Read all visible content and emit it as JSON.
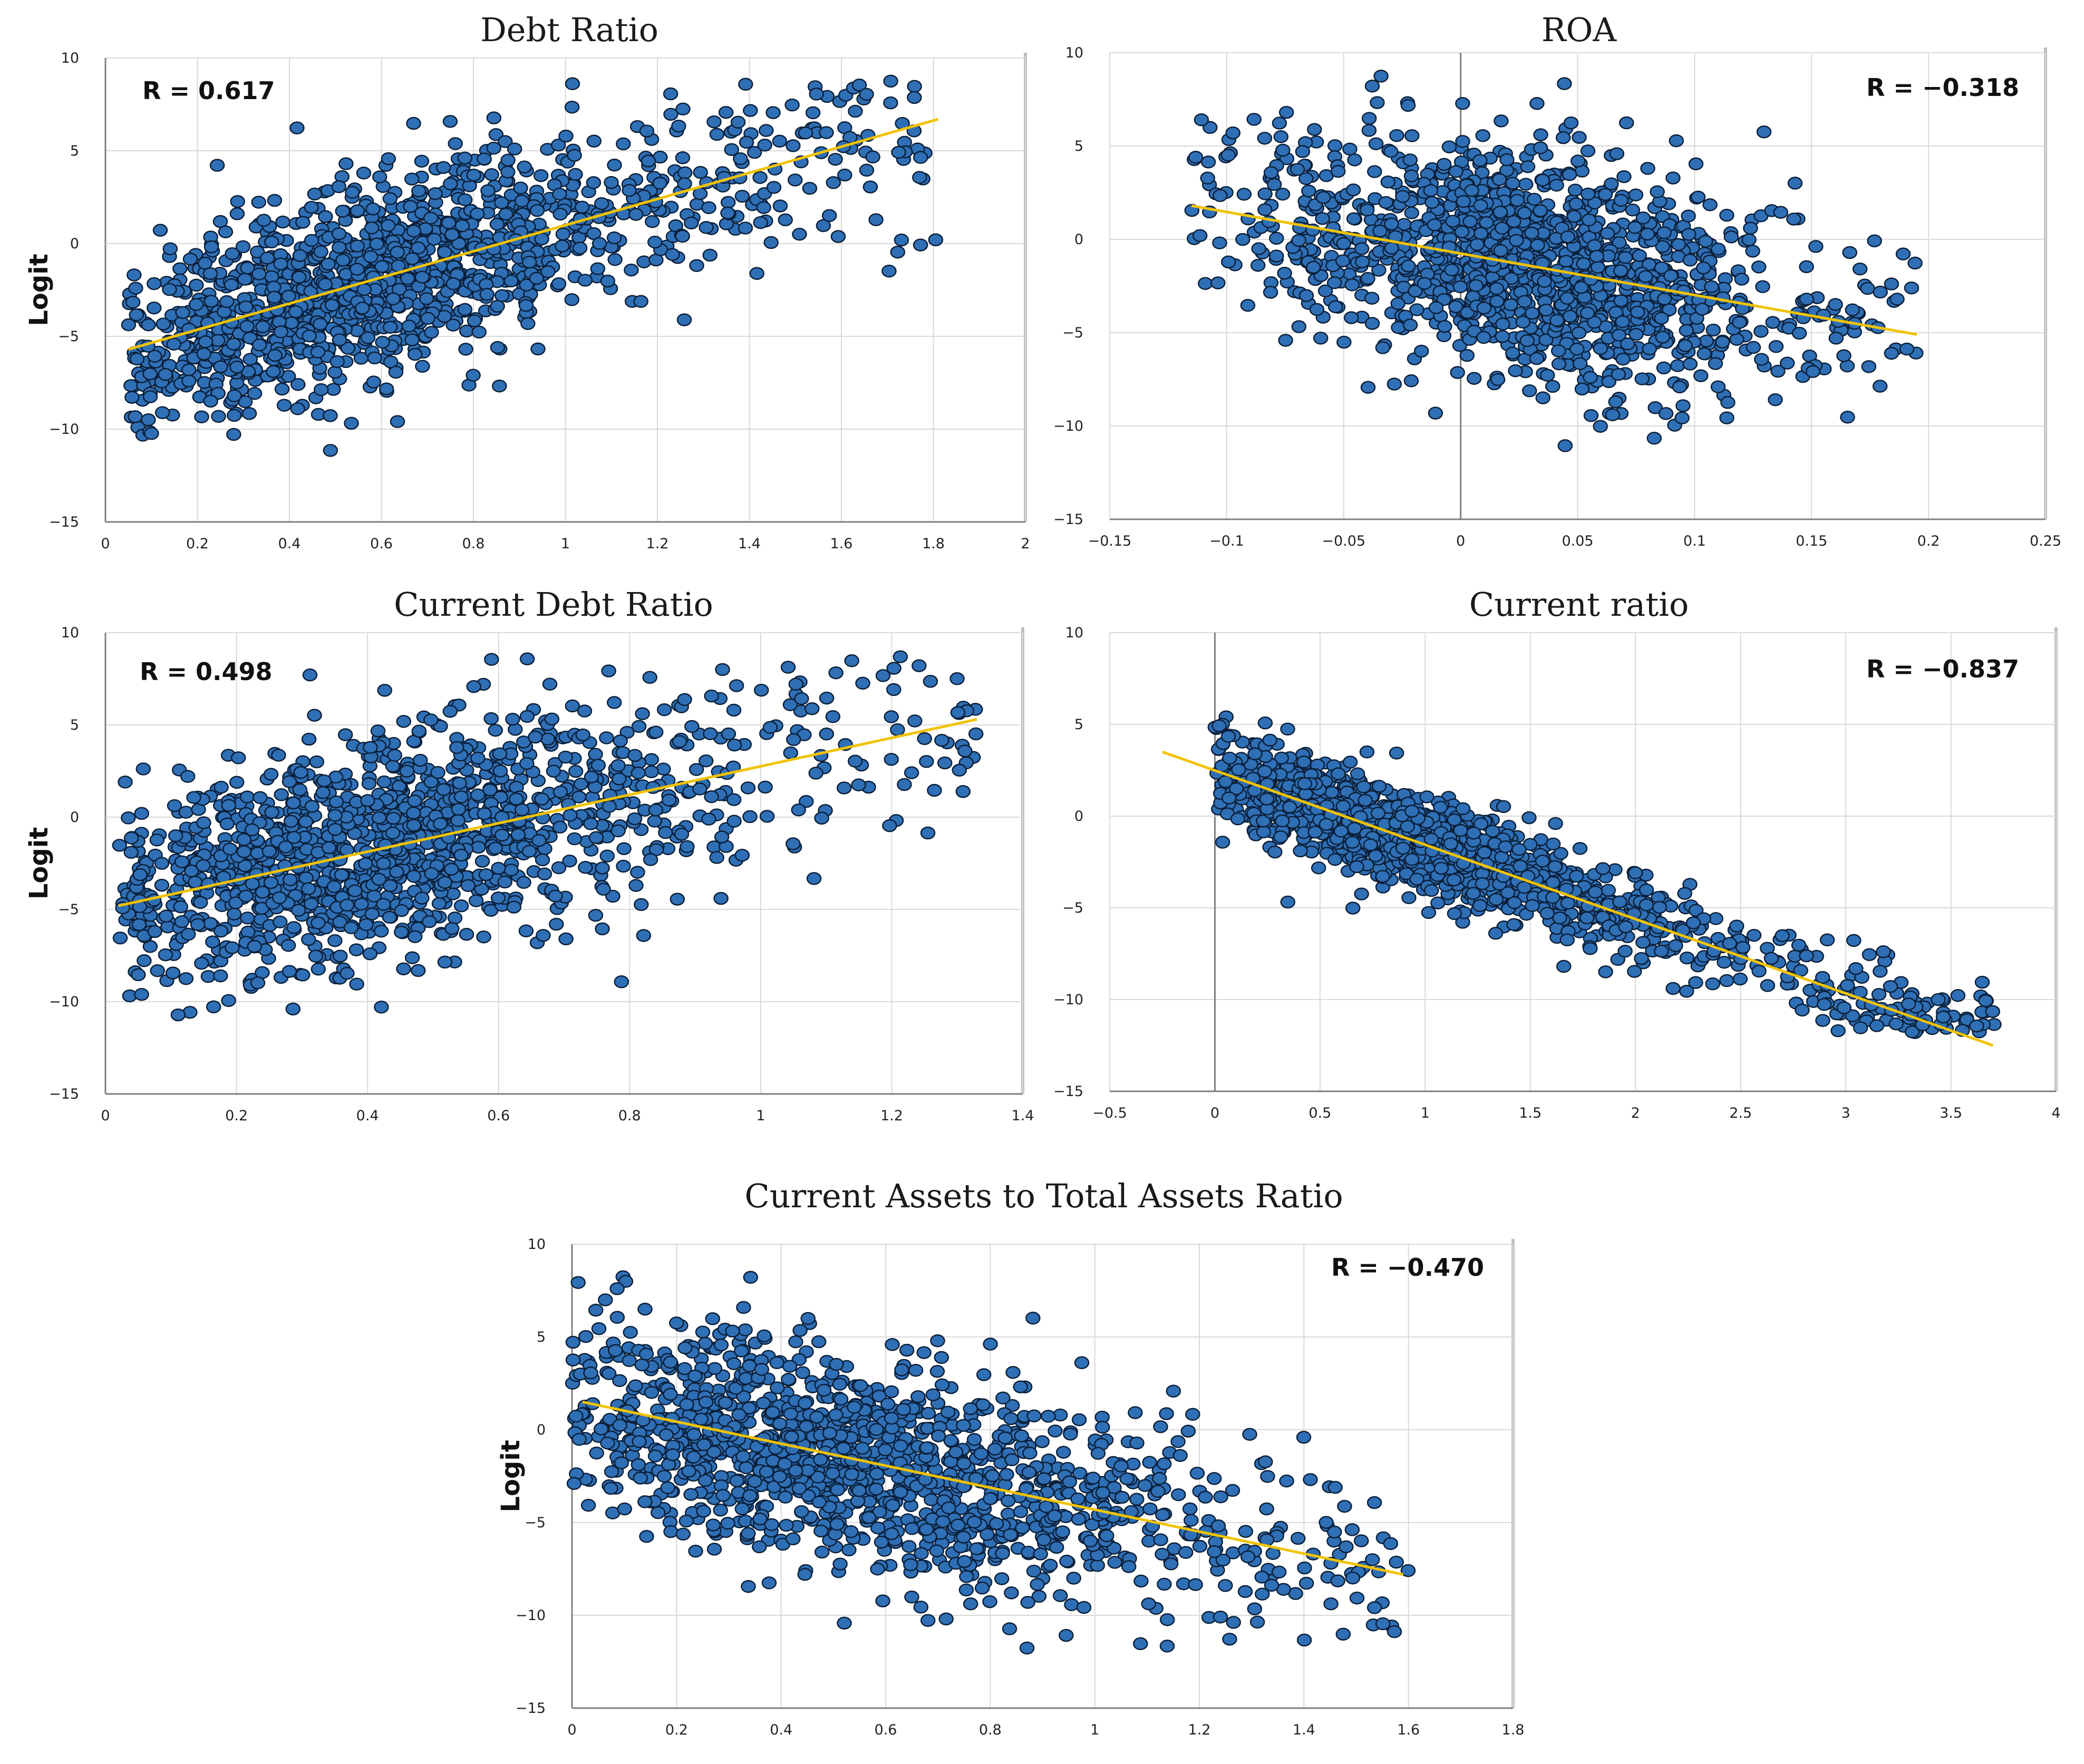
{
  "chart_data": [
    {
      "type": "scatter",
      "title": "Debt Ratio",
      "ylabel": "Logit",
      "annotation": "R = 0.617",
      "xlim": [
        0,
        2
      ],
      "ylim": [
        -15,
        10
      ],
      "x_ticks": [
        "0",
        "0.2",
        "0.4",
        "0.6",
        "0.8",
        "1",
        "1.2",
        "1.4",
        "1.6",
        "1.8",
        "2"
      ],
      "y_ticks": [
        "-15",
        "-10",
        "-5",
        "0",
        "5",
        "10"
      ],
      "trendline": {
        "x": [
          0.05,
          1.81
        ],
        "y": [
          -5.7,
          6.7
        ]
      },
      "points": {
        "x_center": 0.55,
        "x_spread": 0.3,
        "x_min": 0.05,
        "x_max": 1.82,
        "y_noise": 2.6
      },
      "approx_point_count": 1400,
      "grid": true,
      "color": "#2f6fb5",
      "trend_color": "#f2c200"
    },
    {
      "type": "scatter",
      "title": "ROA",
      "ylabel": "",
      "annotation": "R = −0.318",
      "xlim": [
        -0.15,
        0.25
      ],
      "ylim": [
        -15,
        10
      ],
      "x_ticks": [
        "-0.15",
        "-0.1",
        "-0.05",
        "0",
        "0.05",
        "0.1",
        "0.15",
        "0.2",
        "0.25"
      ],
      "y_ticks": [
        "-15",
        "-10",
        "-5",
        "0",
        "5",
        "10"
      ],
      "trendline": {
        "x": [
          -0.115,
          0.195
        ],
        "y": [
          1.8,
          -5.1
        ]
      },
      "points": {
        "x_center": 0.03,
        "x_spread": 0.05,
        "x_min": -0.115,
        "x_max": 0.195,
        "y_noise": 3.0
      },
      "approx_point_count": 1400,
      "grid": true,
      "color": "#2f6fb5",
      "trend_color": "#f2c200"
    },
    {
      "type": "scatter",
      "title": "Current Debt Ratio",
      "ylabel": "Logit",
      "annotation": "R = 0.498",
      "xlim": [
        0,
        1.4
      ],
      "ylim": [
        -15,
        10
      ],
      "x_ticks": [
        "0",
        "0.2",
        "0.4",
        "0.6",
        "0.8",
        "1",
        "1.2",
        "1.4"
      ],
      "y_ticks": [
        "-15",
        "-10",
        "-5",
        "0",
        "5",
        "10"
      ],
      "trendline": {
        "x": [
          0.02,
          1.33
        ],
        "y": [
          -4.8,
          5.3
        ]
      },
      "points": {
        "x_center": 0.4,
        "x_spread": 0.22,
        "x_min": 0.02,
        "x_max": 1.33,
        "y_noise": 3.0
      },
      "approx_point_count": 1400,
      "grid": true,
      "color": "#2f6fb5",
      "trend_color": "#f2c200"
    },
    {
      "type": "scatter",
      "title": "Current ratio",
      "ylabel": "",
      "annotation": "R = −0.837",
      "xlim": [
        -0.5,
        4
      ],
      "ylim": [
        -15,
        10
      ],
      "x_ticks": [
        "-0.5",
        "0",
        "0.5",
        "1",
        "1.5",
        "2",
        "2.5",
        "3",
        "3.5",
        "4"
      ],
      "y_ticks": [
        "-15",
        "-10",
        "-5",
        "0",
        "5",
        "10"
      ],
      "trendline": {
        "x": [
          -0.25,
          3.7
        ],
        "y": [
          3.5,
          -12.5
        ]
      },
      "points": {
        "x_center": 0.8,
        "x_spread": 0.6,
        "x_min": 0.0,
        "x_max": 3.72,
        "y_noise": 1.3
      },
      "approx_point_count": 1400,
      "grid": true,
      "color": "#2f6fb5",
      "trend_color": "#f2c200"
    },
    {
      "type": "scatter",
      "title": "Current Assets to Total Assets Ratio",
      "ylabel": "Logit",
      "annotation": "R = −0.470",
      "xlim": [
        0,
        1.8
      ],
      "ylim": [
        -15,
        10
      ],
      "x_ticks": [
        "0",
        "0.2",
        "0.4",
        "0.6",
        "0.8",
        "1",
        "1.2",
        "1.4",
        "1.6",
        "1.8"
      ],
      "y_ticks": [
        "-15",
        "-10",
        "-5",
        "0",
        "5",
        "10"
      ],
      "trendline": {
        "x": [
          0.02,
          1.59
        ],
        "y": [
          1.5,
          -7.8
        ]
      },
      "points": {
        "x_center": 0.5,
        "x_spread": 0.3,
        "x_min": 0.0,
        "x_max": 1.6,
        "y_noise": 2.9
      },
      "approx_point_count": 1400,
      "grid": true,
      "color": "#2f6fb5",
      "trend_color": "#f2c200"
    }
  ]
}
